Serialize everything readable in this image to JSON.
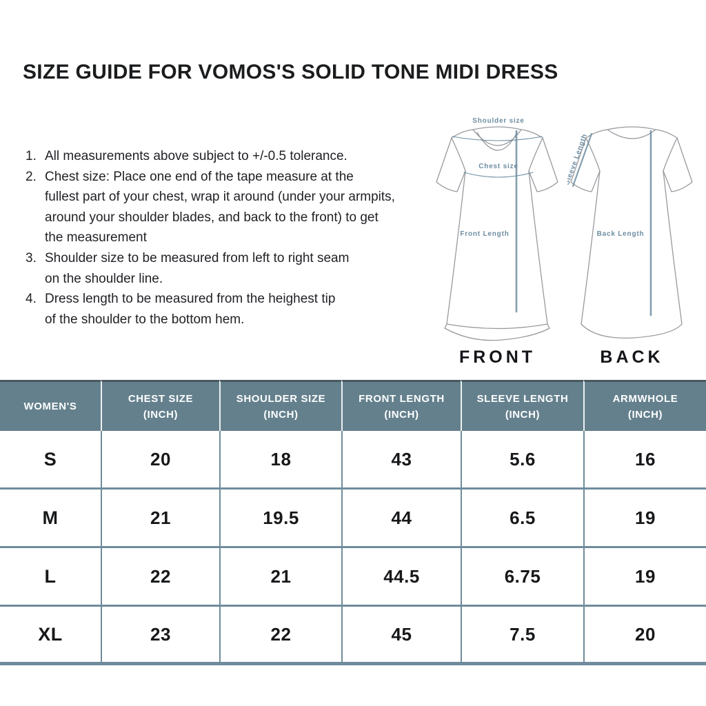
{
  "page": {
    "title": "SIZE GUIDE FOR VOMOS'S SOLID TONE MIDI DRESS"
  },
  "notes": [
    {
      "num": "1.",
      "lines": [
        "All measurements above subject to +/-0.5 tolerance."
      ]
    },
    {
      "num": "2.",
      "lines": [
        "Chest size: Place one end of the tape measure at the",
        "fullest part of your chest, wrap it around (under your armpits,",
        "around your shoulder blades, and back to the front) to get",
        "the measurement"
      ]
    },
    {
      "num": "3.",
      "lines": [
        "Shoulder size to be measured from left to right seam",
        "on the shoulder line."
      ]
    },
    {
      "num": "4.",
      "lines": [
        "Dress length to be measured from the heighest tip",
        "of the shoulder to the bottom hem."
      ]
    }
  ],
  "diagram": {
    "front": {
      "caption": "FRONT",
      "labels": {
        "shoulder": "Shoulder size",
        "chest": "Chest size",
        "length": "Front Length"
      }
    },
    "back": {
      "caption": "BACK",
      "labels": {
        "sleeve": "Sleeve Length",
        "length": "Back Length"
      }
    }
  },
  "table": {
    "columns": [
      {
        "label": "WOMEN'S",
        "sub": ""
      },
      {
        "label": "CHEST SIZE",
        "sub": "(INCH)"
      },
      {
        "label": "SHOULDER SIZE",
        "sub": "(INCH)"
      },
      {
        "label": "FRONT LENGTH",
        "sub": "(INCH)"
      },
      {
        "label": "SLEEVE LENGTH",
        "sub": "(INCH)"
      },
      {
        "label": "ARMWHOLE",
        "sub": "(INCH)"
      }
    ],
    "rows": [
      {
        "size": "S",
        "values": [
          "20",
          "18",
          "43",
          "5.6",
          "16"
        ]
      },
      {
        "size": "M",
        "values": [
          "21",
          "19.5",
          "44",
          "6.5",
          "19"
        ]
      },
      {
        "size": "L",
        "values": [
          "22",
          "21",
          "44.5",
          "6.75",
          "19"
        ]
      },
      {
        "size": "XL",
        "values": [
          "23",
          "22",
          "45",
          "7.5",
          "20"
        ]
      }
    ]
  },
  "colors": {
    "header_bg": "#64808d",
    "header_top_border": "#47585f",
    "grid_border": "#6e8c9b",
    "annotation_slate": "#6d8da1",
    "sketch_outline": "#97999d",
    "text_dark": "#1b1c1e"
  }
}
